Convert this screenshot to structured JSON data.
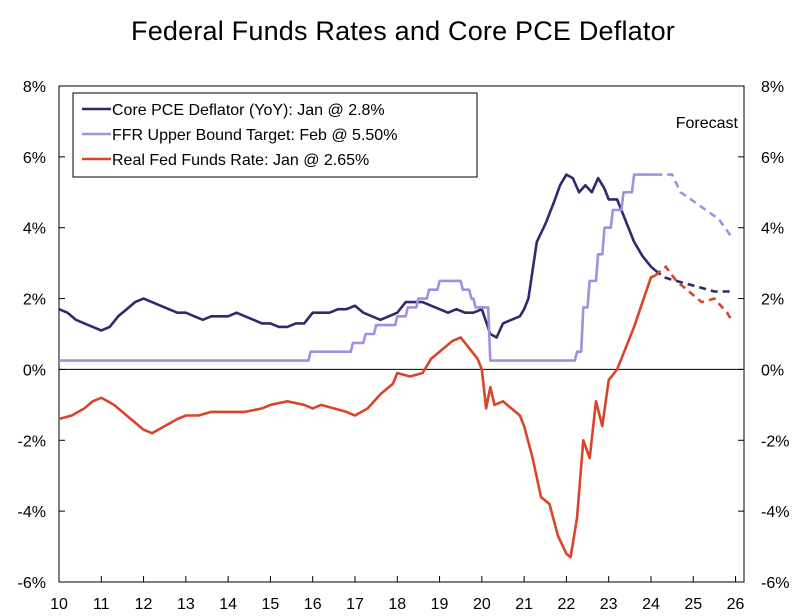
{
  "chart_data": {
    "type": "line",
    "title": "Federal Funds Rates and Core PCE Deflator",
    "annotation": "Forecast",
    "xlim": [
      2010.0,
      2026.2
    ],
    "ylim": [
      -6,
      8
    ],
    "x_ticks": [
      {
        "value": 2010,
        "label": "10"
      },
      {
        "value": 2011,
        "label": "11"
      },
      {
        "value": 2012,
        "label": "12"
      },
      {
        "value": 2013,
        "label": "13"
      },
      {
        "value": 2014,
        "label": "14"
      },
      {
        "value": 2015,
        "label": "15"
      },
      {
        "value": 2016,
        "label": "16"
      },
      {
        "value": 2017,
        "label": "17"
      },
      {
        "value": 2018,
        "label": "18"
      },
      {
        "value": 2019,
        "label": "19"
      },
      {
        "value": 2020,
        "label": "20"
      },
      {
        "value": 2021,
        "label": "21"
      },
      {
        "value": 2022,
        "label": "22"
      },
      {
        "value": 2023,
        "label": "23"
      },
      {
        "value": 2024,
        "label": "24"
      },
      {
        "value": 2025,
        "label": "25"
      },
      {
        "value": 2026,
        "label": "26"
      }
    ],
    "y_ticks": [
      {
        "value": 8,
        "label": "8%"
      },
      {
        "value": 6,
        "label": "6%"
      },
      {
        "value": 4,
        "label": "4%"
      },
      {
        "value": 2,
        "label": "2%"
      },
      {
        "value": 0,
        "label": "0%"
      },
      {
        "value": -2,
        "label": "-2%"
      },
      {
        "value": -4,
        "label": "-4%"
      },
      {
        "value": -6,
        "label": "-6%"
      }
    ],
    "legend_position": "top-left",
    "forecast_start": 2024.1,
    "series": [
      {
        "name": "Core PCE Deflator (YoY): Jan @ 2.8%",
        "color": "#2e2a6e",
        "x": [
          2010.0,
          2010.2,
          2010.4,
          2010.6,
          2010.8,
          2011.0,
          2011.2,
          2011.4,
          2011.6,
          2011.8,
          2012.0,
          2012.2,
          2012.4,
          2012.6,
          2012.8,
          2013.0,
          2013.2,
          2013.4,
          2013.6,
          2013.8,
          2014.0,
          2014.2,
          2014.4,
          2014.6,
          2014.8,
          2015.0,
          2015.2,
          2015.4,
          2015.6,
          2015.8,
          2016.0,
          2016.2,
          2016.4,
          2016.6,
          2016.8,
          2017.0,
          2017.2,
          2017.4,
          2017.6,
          2017.8,
          2018.0,
          2018.2,
          2018.4,
          2018.6,
          2018.8,
          2019.0,
          2019.2,
          2019.4,
          2019.6,
          2019.8,
          2020.0,
          2020.2,
          2020.35,
          2020.5,
          2020.7,
          2020.9,
          2021.0,
          2021.1,
          2021.3,
          2021.5,
          2021.7,
          2021.85,
          2022.0,
          2022.15,
          2022.3,
          2022.45,
          2022.6,
          2022.75,
          2022.9,
          2023.0,
          2023.2,
          2023.4,
          2023.6,
          2023.8,
          2024.0,
          2024.1,
          2024.3,
          2024.6,
          2024.9,
          2025.2,
          2025.5,
          2025.8,
          2025.9
        ],
        "y": [
          1.7,
          1.6,
          1.4,
          1.3,
          1.2,
          1.1,
          1.2,
          1.5,
          1.7,
          1.9,
          2.0,
          1.9,
          1.8,
          1.7,
          1.6,
          1.6,
          1.5,
          1.4,
          1.5,
          1.5,
          1.5,
          1.6,
          1.5,
          1.4,
          1.3,
          1.3,
          1.2,
          1.2,
          1.3,
          1.3,
          1.6,
          1.6,
          1.6,
          1.7,
          1.7,
          1.8,
          1.6,
          1.5,
          1.4,
          1.5,
          1.6,
          1.9,
          1.9,
          1.9,
          1.8,
          1.7,
          1.6,
          1.7,
          1.6,
          1.6,
          1.7,
          1.0,
          0.9,
          1.3,
          1.4,
          1.5,
          1.7,
          2.0,
          3.6,
          4.1,
          4.7,
          5.2,
          5.5,
          5.4,
          5.0,
          5.2,
          5.0,
          5.4,
          5.1,
          4.8,
          4.8,
          4.2,
          3.6,
          3.2,
          2.9,
          2.8,
          2.6,
          2.5,
          2.4,
          2.3,
          2.2,
          2.2,
          2.2
        ],
        "forecast_from_x": 2024.1
      },
      {
        "name": "FFR Upper Bound Target: Feb @ 5.50%",
        "color": "#9f91e0",
        "x": [
          2010.0,
          2015.9,
          2015.95,
          2016.9,
          2016.95,
          2017.2,
          2017.25,
          2017.45,
          2017.5,
          2017.95,
          2018.0,
          2018.2,
          2018.25,
          2018.45,
          2018.5,
          2018.7,
          2018.75,
          2018.95,
          2019.0,
          2019.5,
          2019.55,
          2019.7,
          2019.75,
          2019.8,
          2019.85,
          2020.15,
          2020.2,
          2022.2,
          2022.25,
          2022.35,
          2022.4,
          2022.5,
          2022.55,
          2022.7,
          2022.75,
          2022.85,
          2022.9,
          2023.05,
          2023.1,
          2023.3,
          2023.35,
          2023.55,
          2023.6,
          2024.1,
          2024.5,
          2024.7,
          2025.0,
          2025.3,
          2025.6,
          2025.9
        ],
        "y": [
          0.25,
          0.25,
          0.5,
          0.5,
          0.75,
          0.75,
          1.0,
          1.0,
          1.25,
          1.25,
          1.5,
          1.5,
          1.75,
          1.75,
          2.0,
          2.0,
          2.25,
          2.25,
          2.5,
          2.5,
          2.25,
          2.25,
          2.0,
          2.0,
          1.75,
          1.75,
          0.25,
          0.25,
          0.5,
          0.5,
          1.75,
          1.75,
          2.5,
          2.5,
          3.25,
          3.25,
          4.0,
          4.0,
          4.5,
          4.5,
          5.0,
          5.0,
          5.5,
          5.5,
          5.5,
          5.0,
          4.75,
          4.5,
          4.25,
          3.75
        ],
        "forecast_from_x": 2024.1
      },
      {
        "name": "Real Fed Funds Rate: Jan @ 2.65%",
        "color": "#d9452b",
        "x": [
          2010.0,
          2010.3,
          2010.6,
          2010.8,
          2011.0,
          2011.3,
          2011.6,
          2011.9,
          2012.0,
          2012.2,
          2012.5,
          2012.8,
          2013.0,
          2013.3,
          2013.6,
          2014.0,
          2014.4,
          2014.8,
          2015.0,
          2015.4,
          2015.8,
          2016.0,
          2016.2,
          2016.5,
          2016.8,
          2017.0,
          2017.3,
          2017.6,
          2017.9,
          2018.0,
          2018.3,
          2018.6,
          2018.8,
          2019.0,
          2019.3,
          2019.5,
          2019.7,
          2019.9,
          2020.0,
          2020.1,
          2020.2,
          2020.3,
          2020.5,
          2020.7,
          2020.9,
          2021.0,
          2021.2,
          2021.4,
          2021.6,
          2021.8,
          2022.0,
          2022.1,
          2022.25,
          2022.4,
          2022.55,
          2022.7,
          2022.85,
          2023.0,
          2023.2,
          2023.4,
          2023.6,
          2023.8,
          2024.0,
          2024.1,
          2024.35,
          2024.6,
          2024.9,
          2025.2,
          2025.5,
          2025.8,
          2025.9
        ],
        "y": [
          -1.4,
          -1.3,
          -1.1,
          -0.9,
          -0.8,
          -1.0,
          -1.3,
          -1.6,
          -1.7,
          -1.8,
          -1.6,
          -1.4,
          -1.3,
          -1.3,
          -1.2,
          -1.2,
          -1.2,
          -1.1,
          -1.0,
          -0.9,
          -1.0,
          -1.1,
          -1.0,
          -1.1,
          -1.2,
          -1.3,
          -1.1,
          -0.7,
          -0.4,
          -0.1,
          -0.2,
          -0.1,
          0.3,
          0.5,
          0.8,
          0.9,
          0.6,
          0.3,
          0.0,
          -1.1,
          -0.5,
          -1.0,
          -0.9,
          -1.1,
          -1.3,
          -1.6,
          -2.5,
          -3.6,
          -3.8,
          -4.7,
          -5.2,
          -5.3,
          -4.2,
          -2.0,
          -2.5,
          -0.9,
          -1.6,
          -0.3,
          0.0,
          0.6,
          1.2,
          1.9,
          2.6,
          2.65,
          2.9,
          2.5,
          2.2,
          1.9,
          2.0,
          1.6,
          1.4
        ],
        "forecast_from_x": 2024.1
      }
    ]
  }
}
